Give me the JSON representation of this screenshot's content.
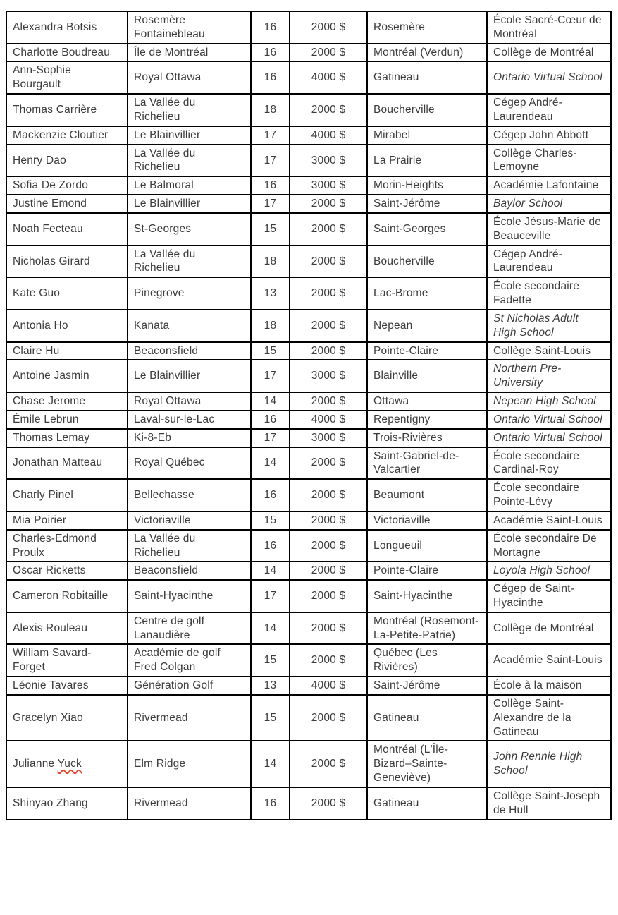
{
  "colors": {
    "text": "#3c3c3c",
    "border": "#000000",
    "spellcheck_underline": "#e8442e"
  },
  "table": {
    "rows": [
      {
        "name": "Alexandra Botsis",
        "club": "Rosemère Fontainebleau",
        "age": "16",
        "amount": "2000 $",
        "city": "Rosemère",
        "school": "École Sacré-Cœur de Montréal",
        "school_italic": false
      },
      {
        "name": "Charlotte Boudreau",
        "club": "Île de Montréal",
        "age": "16",
        "amount": "2000 $",
        "city": "Montréal (Verdun)",
        "school": "Collège de Montréal",
        "school_italic": false
      },
      {
        "name": "Ann-Sophie Bourgault",
        "club": "Royal Ottawa",
        "age": "16",
        "amount": "4000 $",
        "city": "Gatineau",
        "school": "Ontario Virtual School",
        "school_italic": true
      },
      {
        "name": "Thomas Carrière",
        "club": "La Vallée du Richelieu",
        "age": "18",
        "amount": "2000 $",
        "city": "Boucherville",
        "school": "Cégep André-Laurendeau",
        "school_italic": false
      },
      {
        "name": "Mackenzie Cloutier",
        "club": "Le Blainvillier",
        "age": "17",
        "amount": "4000 $",
        "city": "Mirabel",
        "school": "Cégep John Abbott",
        "school_italic": false
      },
      {
        "name": "Henry Dao",
        "club": "La Vallée du Richelieu",
        "age": "17",
        "amount": "3000 $",
        "city": "La Prairie",
        "school": "Collège Charles-Lemoyne",
        "school_italic": false
      },
      {
        "name": "Sofia De Zordo",
        "club": "Le Balmoral",
        "age": "16",
        "amount": "3000 $",
        "city": "Morin-Heights",
        "school": "Académie Lafontaine",
        "school_italic": false
      },
      {
        "name": "Justine Emond",
        "club": "Le Blainvillier",
        "age": "17",
        "amount": "2000 $",
        "city": "Saint-Jérôme",
        "school": "Baylor School",
        "school_italic": true
      },
      {
        "name": "Noah Fecteau",
        "club": "St-Georges",
        "age": "15",
        "amount": "2000 $",
        "city": "Saint-Georges",
        "school": "École Jésus-Marie de Beauceville",
        "school_italic": false
      },
      {
        "name": "Nicholas Girard",
        "club": "La Vallée du Richelieu",
        "age": "18",
        "amount": "2000 $",
        "city": "Boucherville",
        "school": "Cégep André-Laurendeau",
        "school_italic": false
      },
      {
        "name": "Kate Guo",
        "club": "Pinegrove",
        "age": "13",
        "amount": "2000 $",
        "city": "Lac-Brome",
        "school": "École secondaire Fadette",
        "school_italic": false
      },
      {
        "name": "Antonia Ho",
        "club": "Kanata",
        "age": "18",
        "amount": "2000 $",
        "city": "Nepean",
        "school": "St Nicholas Adult High School",
        "school_italic": true
      },
      {
        "name": "Claire Hu",
        "club": "Beaconsfield",
        "age": "15",
        "amount": "2000 $",
        "city": "Pointe-Claire",
        "school": "Collège Saint-Louis",
        "school_italic": false
      },
      {
        "name": "Antoine Jasmin",
        "club": "Le Blainvillier",
        "age": "17",
        "amount": "3000 $",
        "city": "Blainville",
        "school": "Northern Pre-University",
        "school_italic": true
      },
      {
        "name": "Chase Jerome",
        "club": "Royal Ottawa",
        "age": "14",
        "amount": "2000 $",
        "city": "Ottawa",
        "school": "Nepean High School",
        "school_italic": true
      },
      {
        "name": "Émile Lebrun",
        "club": "Laval-sur-le-Lac",
        "age": "16",
        "amount": "4000 $",
        "city": "Repentigny",
        "school": "Ontario Virtual School",
        "school_italic": true
      },
      {
        "name": "Thomas Lemay",
        "club": "Ki-8-Eb",
        "age": "17",
        "amount": "3000 $",
        "city": "Trois-Rivières",
        "school": "Ontario Virtual School",
        "school_italic": true
      },
      {
        "name": "Jonathan Matteau",
        "club": "Royal Québec",
        "age": "14",
        "amount": "2000 $",
        "city": "Saint-Gabriel-de-Valcartier",
        "school": "École secondaire Cardinal-Roy",
        "school_italic": false
      },
      {
        "name": "Charly Pinel",
        "club": "Bellechasse",
        "age": "16",
        "amount": "2000 $",
        "city": "Beaumont",
        "school": "École secondaire Pointe-Lévy",
        "school_italic": false
      },
      {
        "name": "Mia Poirier",
        "club": "Victoriaville",
        "age": "15",
        "amount": "2000 $",
        "city": "Victoriaville",
        "school": "Académie Saint-Louis",
        "school_italic": false
      },
      {
        "name": "Charles-Edmond Proulx",
        "club": "La Vallée du Richelieu",
        "age": "16",
        "amount": "2000 $",
        "city": "Longueuil",
        "school": "École secondaire De Mortagne",
        "school_italic": false
      },
      {
        "name": "Oscar Ricketts",
        "club": "Beaconsfield",
        "age": "14",
        "amount": "2000 $",
        "city": "Pointe-Claire",
        "school": "Loyola High School",
        "school_italic": true
      },
      {
        "name": "Cameron Robitaille",
        "club": "Saint-Hyacinthe",
        "age": "17",
        "amount": "2000 $",
        "city": "Saint-Hyacinthe",
        "school": "Cégep de Saint-Hyacinthe",
        "school_italic": false
      },
      {
        "name": "Alexis Rouleau",
        "club": "Centre de golf Lanaudière",
        "age": "14",
        "amount": "2000 $",
        "city": "Montréal (Rosemont-La-Petite-Patrie)",
        "school": "Collège de Montréal",
        "school_italic": false
      },
      {
        "name": "William Savard-Forget",
        "club": "Académie de golf Fred Colgan",
        "age": "15",
        "amount": "2000 $",
        "city": "Québec (Les Rivières)",
        "school": "Académie Saint-Louis",
        "school_italic": false
      },
      {
        "name": "Léonie Tavares",
        "club": "Génération Golf",
        "age": "13",
        "amount": "4000 $",
        "city": "Saint-Jérôme",
        "school": "École à la maison",
        "school_italic": false
      },
      {
        "name": "Gracelyn Xiao",
        "club": "Rivermead",
        "age": "15",
        "amount": "2000 $",
        "city": "Gatineau",
        "school": "Collège Saint-Alexandre de la Gatineau",
        "school_italic": false
      },
      {
        "name": "Julianne Yuck",
        "name_misspelled_part": "Yuck",
        "club": "Elm Ridge",
        "age": "14",
        "amount": "2000 $",
        "city": "Montréal (L'Île-Bizard–Sainte-Geneviève)",
        "school": "John Rennie High School",
        "school_italic": true
      },
      {
        "name": "Shinyao Zhang",
        "club": "Rivermead",
        "age": "16",
        "amount": "2000 $",
        "city": "Gatineau",
        "school": "Collège Saint-Joseph de Hull",
        "school_italic": false
      }
    ]
  }
}
